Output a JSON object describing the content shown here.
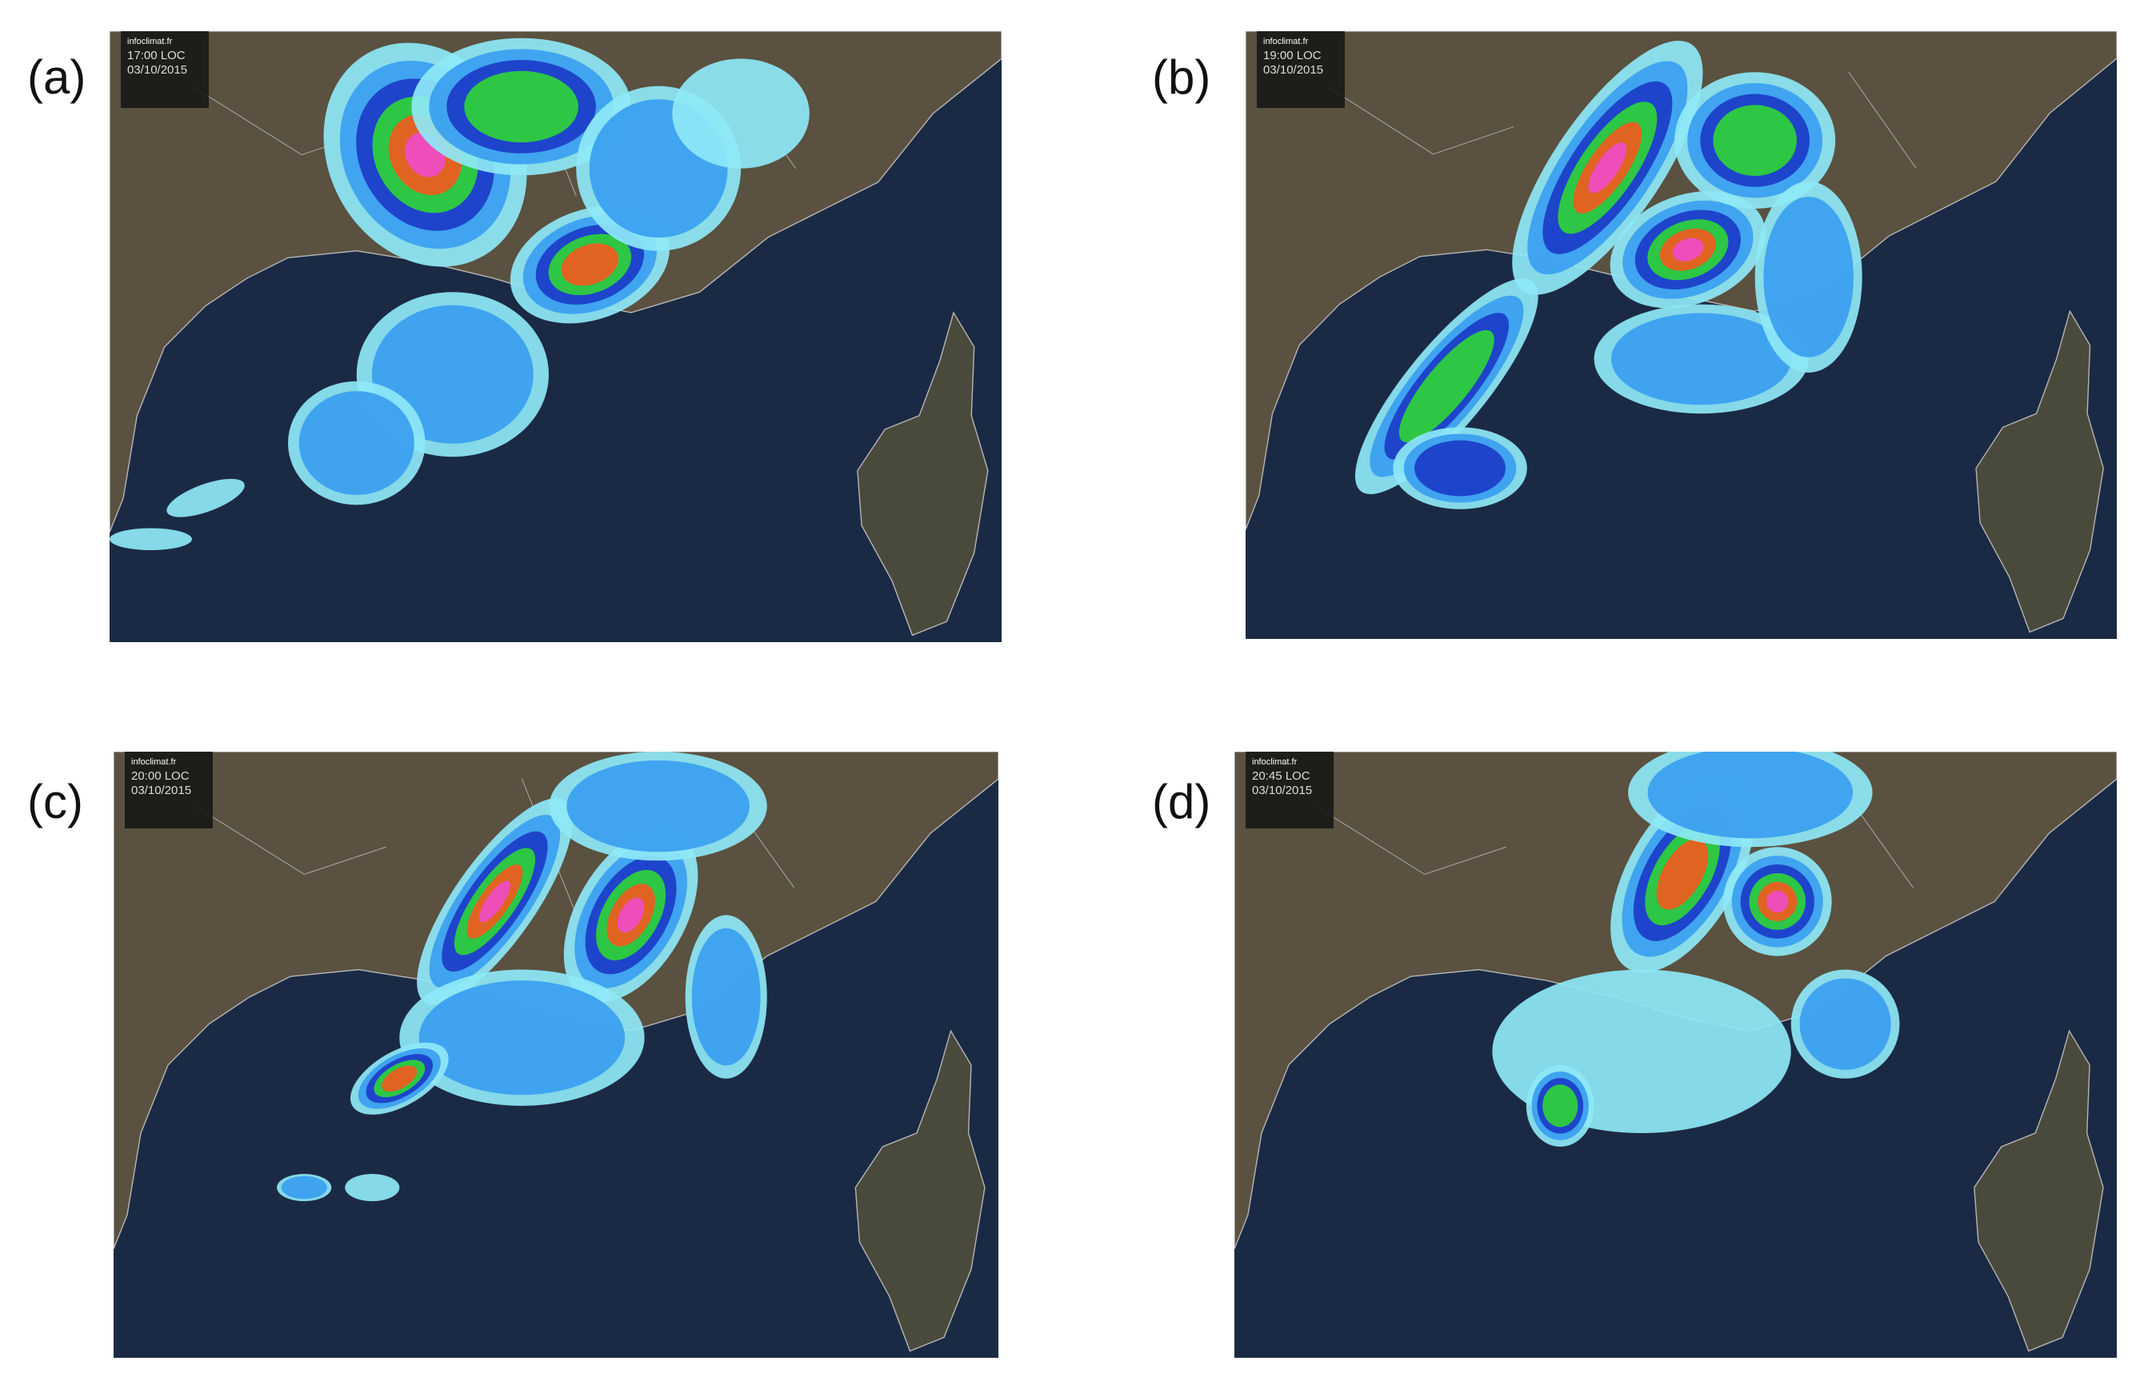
{
  "panels": [
    {
      "label": "(a)",
      "logo": "infoclimat.fr",
      "time": "17:00 LOC",
      "date": "03/10/2015"
    },
    {
      "label": "(b)",
      "logo": "infoclimat.fr",
      "time": "19:00 LOC",
      "date": "03/10/2015"
    },
    {
      "label": "(c)",
      "logo": "infoclimat.fr",
      "time": "20:00 LOC",
      "date": "03/10/2015"
    },
    {
      "label": "(d)",
      "logo": "infoclimat.fr",
      "time": "20:45 LOC",
      "date": "03/10/2015"
    }
  ]
}
